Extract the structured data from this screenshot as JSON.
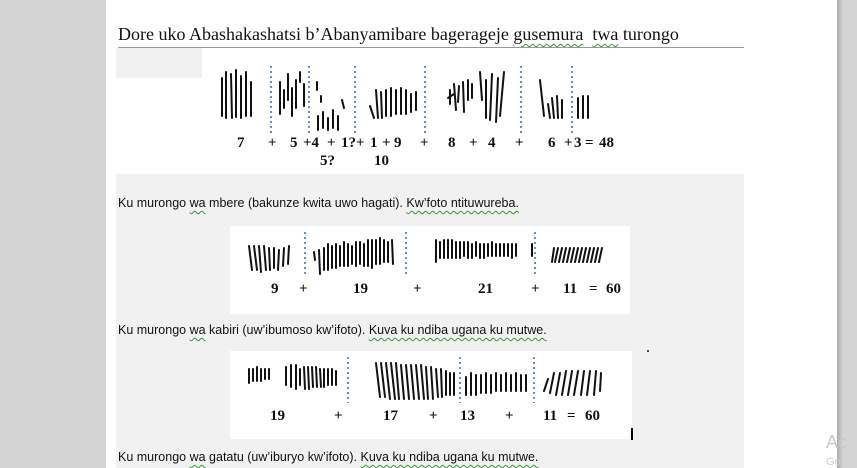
{
  "document": {
    "title_plain": "Dore uko Abashakashatsi b’Abanyamibare bagerageje ",
    "title_marked_1": "gusemura",
    "title_gap": "  ",
    "title_marked_2": "twa",
    "title_end": " turongo",
    "watermark": "Ac",
    "watermark_sub": "Go"
  },
  "figure1": {
    "row1": [
      "7",
      "+",
      "5",
      "+4",
      "+",
      "1?+",
      "1",
      "+",
      "9",
      "+",
      "8",
      "+",
      "4",
      "+",
      "6",
      "+",
      "3",
      "=",
      "48"
    ],
    "row2": [
      "5?",
      "10"
    ]
  },
  "caption1": {
    "start": "Ku murongo ",
    "wa": "wa",
    "middle": " mbere (bakunze kwita uwo hagati). ",
    "end": "Kw’foto ntituwureba."
  },
  "figure2": {
    "numbers": [
      "9",
      "+",
      "19",
      "+",
      "21",
      "+",
      "11",
      "=",
      "60"
    ]
  },
  "caption2": {
    "start": "Ku murongo ",
    "wa": "wa",
    "middle": " kabiri (uw’ibumoso kw’ifoto). ",
    "end": "Kuva ku ndiba ugana ku mutwe."
  },
  "figure3": {
    "numbers": [
      "19",
      "+",
      "17",
      "+",
      "13",
      "+",
      "11",
      "=",
      "60"
    ]
  },
  "caption3": {
    "start": "Ku murongo ",
    "wa": "wa",
    "middle": " gatatu (uw’iburyo kw’ifoto). ",
    "end": "Kuva ku ndiba ugana ku mutwe."
  }
}
